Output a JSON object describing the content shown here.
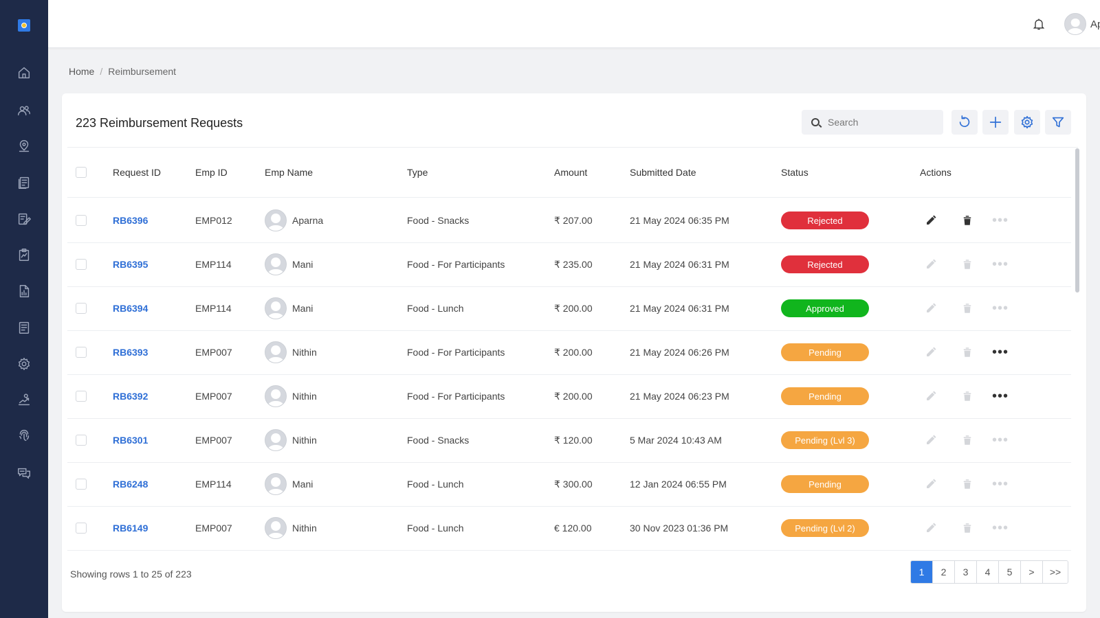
{
  "header": {
    "user_name": "Aparna"
  },
  "breadcrumb": {
    "home": "Home",
    "separator": "/",
    "current": "Reimbursement"
  },
  "card": {
    "title": "223 Reimbursement Requests",
    "search_placeholder": "Search"
  },
  "table": {
    "columns": {
      "request_id": "Request ID",
      "emp_id": "Emp ID",
      "emp_name": "Emp Name",
      "type": "Type",
      "amount": "Amount",
      "submitted": "Submitted Date",
      "status": "Status",
      "actions": "Actions"
    },
    "rows": [
      {
        "request_id": "RB6396",
        "emp_id": "EMP012",
        "emp_name": "Aparna",
        "type": "Food - Snacks",
        "amount": "₹ 207.00",
        "submitted": "21 May 2024 06:35 PM",
        "status": "Rejected",
        "status_kind": "rejected",
        "actions_enabled": true,
        "more_enabled": false
      },
      {
        "request_id": "RB6395",
        "emp_id": "EMP114",
        "emp_name": "Mani",
        "type": "Food - For Participants",
        "amount": "₹ 235.00",
        "submitted": "21 May 2024 06:31 PM",
        "status": "Rejected",
        "status_kind": "rejected",
        "actions_enabled": false,
        "more_enabled": false
      },
      {
        "request_id": "RB6394",
        "emp_id": "EMP114",
        "emp_name": "Mani",
        "type": "Food - Lunch",
        "amount": "₹ 200.00",
        "submitted": "21 May 2024 06:31 PM",
        "status": "Approved",
        "status_kind": "approved",
        "actions_enabled": false,
        "more_enabled": false
      },
      {
        "request_id": "RB6393",
        "emp_id": "EMP007",
        "emp_name": "Nithin",
        "type": "Food - For Participants",
        "amount": "₹ 200.00",
        "submitted": "21 May 2024 06:26 PM",
        "status": "Pending",
        "status_kind": "pending",
        "actions_enabled": false,
        "more_enabled": true
      },
      {
        "request_id": "RB6392",
        "emp_id": "EMP007",
        "emp_name": "Nithin",
        "type": "Food - For Participants",
        "amount": "₹ 200.00",
        "submitted": "21 May 2024 06:23 PM",
        "status": "Pending",
        "status_kind": "pending",
        "actions_enabled": false,
        "more_enabled": true
      },
      {
        "request_id": "RB6301",
        "emp_id": "EMP007",
        "emp_name": "Nithin",
        "type": "Food - Snacks",
        "amount": "₹ 120.00",
        "submitted": "5 Mar 2024 10:43 AM",
        "status": "Pending (Lvl 3)",
        "status_kind": "pending",
        "actions_enabled": false,
        "more_enabled": false
      },
      {
        "request_id": "RB6248",
        "emp_id": "EMP114",
        "emp_name": "Mani",
        "type": "Food - Lunch",
        "amount": "₹ 300.00",
        "submitted": "12 Jan 2024 06:55 PM",
        "status": "Pending",
        "status_kind": "pending",
        "actions_enabled": false,
        "more_enabled": false
      },
      {
        "request_id": "RB6149",
        "emp_id": "EMP007",
        "emp_name": "Nithin",
        "type": "Food - Lunch",
        "amount": "€ 120.00",
        "submitted": "30 Nov 2023 01:36 PM",
        "status": "Pending (Lvl 2)",
        "status_kind": "pending",
        "actions_enabled": false,
        "more_enabled": false
      }
    ]
  },
  "footer": {
    "showing": "Showing rows 1 to 25 of 223",
    "pages": [
      "1",
      "2",
      "3",
      "4",
      "5",
      ">",
      ">>"
    ],
    "active_page": "1"
  },
  "colors": {
    "sidebar": "#1e2a48",
    "accent": "#2f7ae5",
    "rejected": "#e0303c",
    "approved": "#11b51d",
    "pending": "#f5a641"
  }
}
